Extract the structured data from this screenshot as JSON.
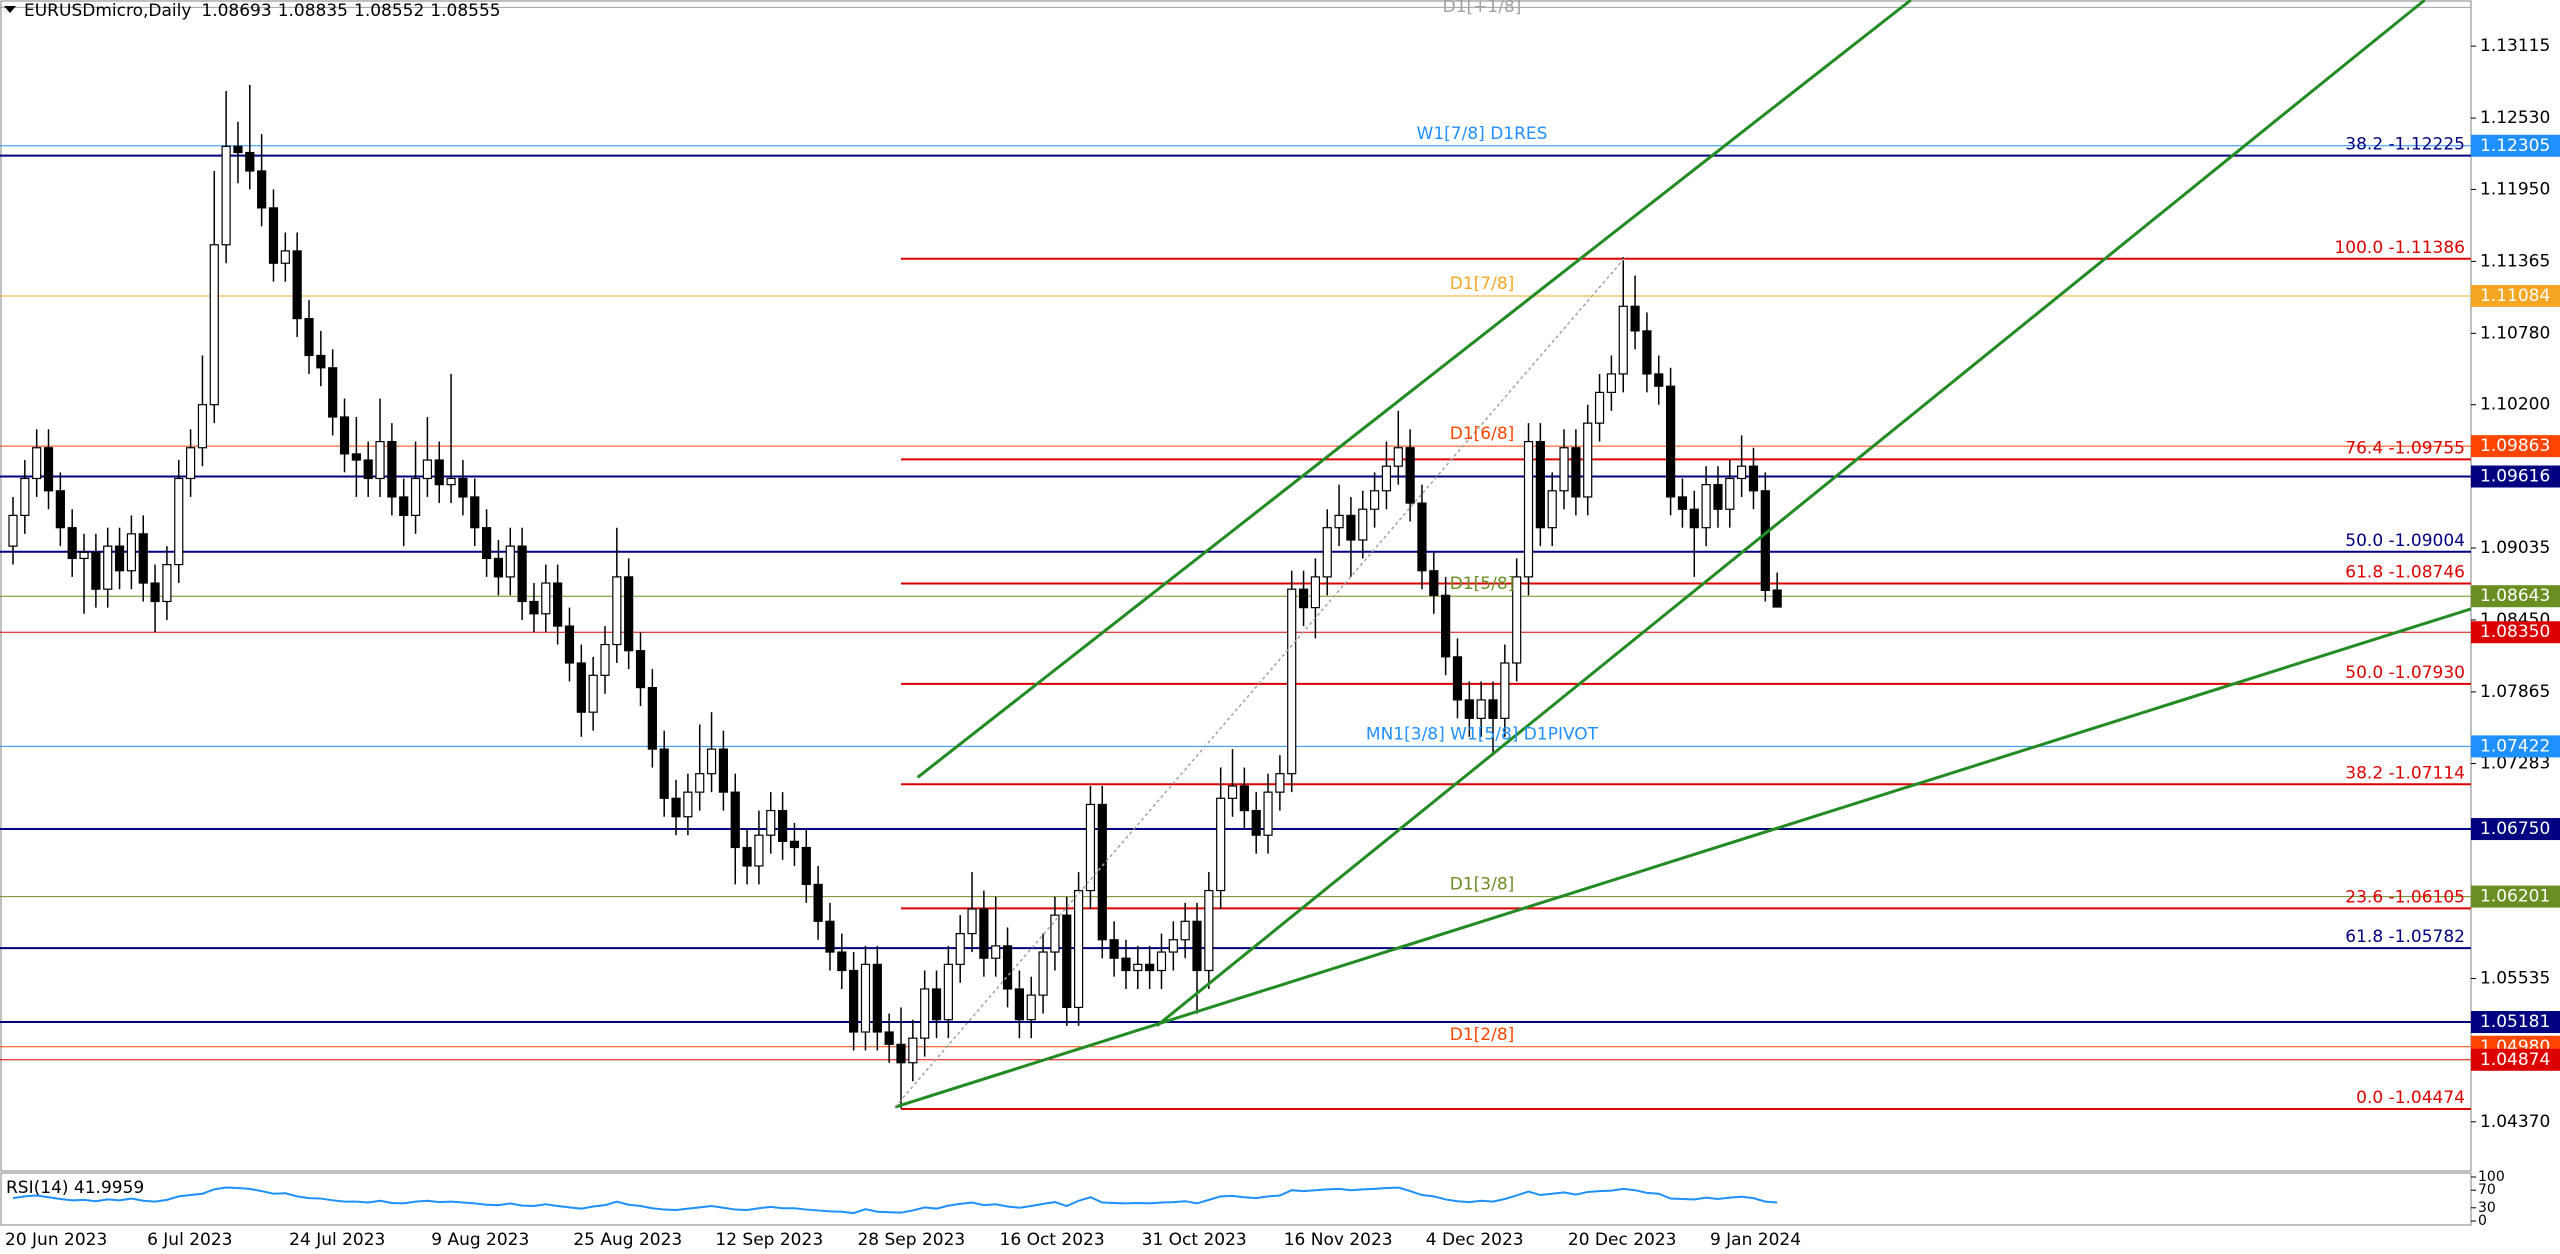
{
  "chart_data": {
    "type": "candlestick",
    "symbol": "EURUSDmicro,Daily",
    "ylim": [
      1.0397,
      1.1349
    ],
    "yticks": [
      1.13115,
      {
        "value": 1.1253,
        "label": "1.12530"
      },
      {
        "value": 1.1195,
        "label": "1.11950"
      },
      1.11365,
      {
        "value": 1.1078,
        "label": "1.10780"
      },
      {
        "value": 1.102,
        "label": "1.10200"
      },
      1.09035,
      {
        "value": 1.0845,
        "label": "1.08450"
      },
      1.07865,
      1.07283,
      1.05535,
      {
        "value": 1.0437,
        "label": "1.04370"
      }
    ],
    "categories": [
      "20 Jun 2023",
      null,
      null,
      null,
      null,
      null,
      null,
      null,
      null,
      null,
      null,
      null,
      "6 Jul 2023",
      null,
      null,
      null,
      null,
      null,
      null,
      null,
      null,
      null,
      null,
      null,
      "24 Jul 2023",
      null,
      null,
      null,
      null,
      null,
      null,
      null,
      null,
      null,
      null,
      null,
      "9 Aug 2023",
      null,
      null,
      null,
      null,
      null,
      null,
      null,
      null,
      null,
      null,
      null,
      "25 Aug 2023",
      null,
      null,
      null,
      null,
      null,
      null,
      null,
      null,
      null,
      null,
      null,
      "12 Sep 2023",
      null,
      null,
      null,
      null,
      null,
      null,
      null,
      null,
      null,
      null,
      null,
      "28 Sep 2023",
      null,
      null,
      null,
      null,
      null,
      null,
      null,
      null,
      null,
      null,
      null,
      "16 Oct 2023",
      null,
      null,
      null,
      null,
      null,
      null,
      null,
      null,
      null,
      null,
      null,
      "31 Oct 2023",
      null,
      null,
      null,
      null,
      null,
      null,
      null,
      null,
      null,
      null,
      null,
      "16 Nov 2023",
      null,
      null,
      null,
      null,
      null,
      null,
      null,
      null,
      null,
      null,
      null,
      "4 Dec 2023",
      null,
      null,
      null,
      null,
      null,
      null,
      null,
      null,
      null,
      null,
      null,
      "20 Dec 2023",
      null,
      null,
      null,
      null,
      null,
      null,
      null,
      null,
      null,
      null,
      null,
      "9 Jan 2024",
      null,
      null,
      null,
      null,
      null
    ],
    "candles": [
      [
        1.0905,
        1.0945,
        1.089,
        1.093
      ],
      [
        1.093,
        1.0975,
        1.0915,
        1.096
      ],
      [
        1.096,
        1.1,
        1.0945,
        1.0985
      ],
      [
        1.0985,
        1.1,
        1.0935,
        1.095
      ],
      [
        1.095,
        1.0965,
        1.0905,
        1.092
      ],
      [
        1.092,
        1.0935,
        1.088,
        1.0895
      ],
      [
        1.0895,
        1.0915,
        1.085,
        1.09
      ],
      [
        1.09,
        1.0915,
        1.0855,
        1.087
      ],
      [
        1.087,
        1.092,
        1.0855,
        1.0905
      ],
      [
        1.0905,
        1.092,
        1.087,
        1.0885
      ],
      [
        1.0885,
        1.093,
        1.087,
        1.0915
      ],
      [
        1.0915,
        1.093,
        1.086,
        1.0875
      ],
      [
        1.0875,
        1.089,
        1.0835,
        1.086
      ],
      [
        1.086,
        1.0905,
        1.0845,
        1.089
      ],
      [
        1.089,
        1.0975,
        1.0875,
        1.096
      ],
      [
        1.096,
        1.1,
        1.0945,
        1.0985
      ],
      [
        1.0985,
        1.106,
        1.097,
        1.102
      ],
      [
        1.102,
        1.121,
        1.1005,
        1.115
      ],
      [
        1.115,
        1.1275,
        1.1135,
        1.123
      ],
      [
        1.123,
        1.125,
        1.12,
        1.1225
      ],
      [
        1.1225,
        1.128,
        1.1195,
        1.121
      ],
      [
        1.121,
        1.124,
        1.1165,
        1.118
      ],
      [
        1.118,
        1.1195,
        1.112,
        1.1135
      ],
      [
        1.1135,
        1.116,
        1.112,
        1.1145
      ],
      [
        1.1145,
        1.116,
        1.1075,
        1.109
      ],
      [
        1.109,
        1.1105,
        1.1045,
        1.106
      ],
      [
        1.106,
        1.108,
        1.1035,
        1.105
      ],
      [
        1.105,
        1.1065,
        1.0995,
        1.101
      ],
      [
        1.101,
        1.1025,
        1.0965,
        1.098
      ],
      [
        1.098,
        1.101,
        1.0945,
        1.0975
      ],
      [
        1.0975,
        1.099,
        1.0945,
        1.096
      ],
      [
        1.096,
        1.1025,
        1.0945,
        1.099
      ],
      [
        1.099,
        1.1005,
        1.093,
        1.0945
      ],
      [
        1.0945,
        1.096,
        1.0905,
        1.093
      ],
      [
        1.093,
        1.099,
        1.0915,
        1.096
      ],
      [
        1.096,
        1.101,
        1.0945,
        1.0975
      ],
      [
        1.0975,
        1.099,
        1.094,
        1.0955
      ],
      [
        1.0955,
        1.1045,
        1.094,
        1.096
      ],
      [
        1.096,
        1.0975,
        1.093,
        1.0945
      ],
      [
        1.0945,
        1.096,
        1.0905,
        1.092
      ],
      [
        1.092,
        1.0935,
        1.088,
        1.0895
      ],
      [
        1.0895,
        1.091,
        1.0865,
        1.088
      ],
      [
        1.088,
        1.092,
        1.0865,
        1.0905
      ],
      [
        1.0905,
        1.092,
        1.0845,
        1.086
      ],
      [
        1.086,
        1.0875,
        1.0835,
        1.085
      ],
      [
        1.085,
        1.089,
        1.0835,
        1.0875
      ],
      [
        1.0875,
        1.089,
        1.0825,
        1.084
      ],
      [
        1.084,
        1.0855,
        1.0795,
        1.081
      ],
      [
        1.081,
        1.0825,
        1.075,
        1.077
      ],
      [
        1.077,
        1.0815,
        1.0755,
        1.08
      ],
      [
        1.08,
        1.084,
        1.0785,
        1.0825
      ],
      [
        1.0825,
        1.092,
        1.081,
        1.088
      ],
      [
        1.088,
        1.0895,
        1.0805,
        1.082
      ],
      [
        1.082,
        1.0835,
        1.0775,
        1.079
      ],
      [
        1.079,
        1.0805,
        1.0725,
        1.074
      ],
      [
        1.074,
        1.0755,
        1.0685,
        1.07
      ],
      [
        1.07,
        1.0715,
        1.067,
        1.0685
      ],
      [
        1.0685,
        1.072,
        1.067,
        1.0705
      ],
      [
        1.0705,
        1.076,
        1.069,
        1.072
      ],
      [
        1.072,
        1.077,
        1.0705,
        1.074
      ],
      [
        1.074,
        1.0755,
        1.069,
        1.0705
      ],
      [
        1.0705,
        1.072,
        1.063,
        1.066
      ],
      [
        1.066,
        1.0675,
        1.063,
        1.0645
      ],
      [
        1.0645,
        1.069,
        1.063,
        1.067
      ],
      [
        1.067,
        1.0705,
        1.0655,
        1.069
      ],
      [
        1.069,
        1.0705,
        1.065,
        1.0665
      ],
      [
        1.0665,
        1.068,
        1.0645,
        1.066
      ],
      [
        1.066,
        1.0675,
        1.0615,
        1.063
      ],
      [
        1.063,
        1.0645,
        1.0585,
        1.06
      ],
      [
        1.06,
        1.0615,
        1.056,
        1.0575
      ],
      [
        1.0575,
        1.059,
        1.0545,
        1.056
      ],
      [
        1.056,
        1.0575,
        1.0495,
        1.051
      ],
      [
        1.051,
        1.058,
        1.0495,
        1.0565
      ],
      [
        1.0565,
        1.058,
        1.0495,
        1.051
      ],
      [
        1.051,
        1.0525,
        1.0485,
        1.05
      ],
      [
        1.05,
        1.053,
        1.0448,
        1.0485
      ],
      [
        1.0485,
        1.052,
        1.047,
        1.0505
      ],
      [
        1.0505,
        1.056,
        1.049,
        1.0545
      ],
      [
        1.0545,
        1.056,
        1.0505,
        1.052
      ],
      [
        1.052,
        1.058,
        1.0505,
        1.0565
      ],
      [
        1.0565,
        1.0605,
        1.055,
        1.059
      ],
      [
        1.059,
        1.064,
        1.0575,
        1.061
      ],
      [
        1.061,
        1.0625,
        1.0555,
        1.057
      ],
      [
        1.057,
        1.062,
        1.0555,
        1.058
      ],
      [
        1.058,
        1.0595,
        1.053,
        1.0545
      ],
      [
        1.0545,
        1.056,
        1.0505,
        1.052
      ],
      [
        1.052,
        1.0555,
        1.0505,
        1.054
      ],
      [
        1.054,
        1.059,
        1.0525,
        1.0575
      ],
      [
        1.0575,
        1.062,
        1.056,
        1.0605
      ],
      [
        1.0605,
        1.062,
        1.0515,
        1.053
      ],
      [
        1.053,
        1.064,
        1.0515,
        1.0625
      ],
      [
        1.0625,
        1.071,
        1.061,
        1.0695
      ],
      [
        1.0695,
        1.071,
        1.057,
        1.0585
      ],
      [
        1.0585,
        1.06,
        1.0555,
        1.057
      ],
      [
        1.057,
        1.0585,
        1.0545,
        1.056
      ],
      [
        1.056,
        1.058,
        1.0545,
        1.0565
      ],
      [
        1.0565,
        1.058,
        1.0545,
        1.056
      ],
      [
        1.056,
        1.059,
        1.0545,
        1.0575
      ],
      [
        1.0575,
        1.06,
        1.056,
        1.0585
      ],
      [
        1.0585,
        1.0615,
        1.057,
        1.06
      ],
      [
        1.06,
        1.0615,
        1.0525,
        1.056
      ],
      [
        1.056,
        1.064,
        1.0545,
        1.0625
      ],
      [
        1.0625,
        1.0725,
        1.061,
        1.07
      ],
      [
        1.07,
        1.074,
        1.0685,
        1.071
      ],
      [
        1.071,
        1.0725,
        1.0675,
        1.069
      ],
      [
        1.069,
        1.0705,
        1.0655,
        1.067
      ],
      [
        1.067,
        1.072,
        1.0655,
        1.0705
      ],
      [
        1.0705,
        1.0735,
        1.069,
        1.072
      ],
      [
        1.072,
        1.0885,
        1.0705,
        1.087
      ],
      [
        1.087,
        1.0885,
        1.084,
        1.0855
      ],
      [
        1.0855,
        1.0895,
        1.083,
        1.088
      ],
      [
        1.088,
        1.0935,
        1.0865,
        1.092
      ],
      [
        1.092,
        1.0955,
        1.0905,
        1.093
      ],
      [
        1.093,
        1.0945,
        1.088,
        1.091
      ],
      [
        1.091,
        1.095,
        1.0895,
        1.0935
      ],
      [
        1.0935,
        1.0965,
        1.092,
        1.095
      ],
      [
        1.095,
        1.099,
        1.0935,
        1.097
      ],
      [
        1.097,
        1.1015,
        1.0955,
        1.0985
      ],
      [
        1.0985,
        1.1,
        1.0925,
        1.094
      ],
      [
        1.094,
        1.0955,
        1.087,
        1.0885
      ],
      [
        1.0885,
        1.09,
        1.085,
        1.0865
      ],
      [
        1.0865,
        1.088,
        1.08,
        1.0815
      ],
      [
        1.0815,
        1.083,
        1.0765,
        1.078
      ],
      [
        1.078,
        1.0795,
        1.075,
        1.0765
      ],
      [
        1.0765,
        1.0795,
        1.075,
        1.078
      ],
      [
        1.078,
        1.0795,
        1.0735,
        1.0765
      ],
      [
        1.0765,
        1.0825,
        1.075,
        1.081
      ],
      [
        1.081,
        1.0895,
        1.0795,
        1.088
      ],
      [
        1.088,
        1.1005,
        1.0865,
        1.099
      ],
      [
        1.099,
        1.1005,
        1.0905,
        1.092
      ],
      [
        1.092,
        1.0965,
        1.0905,
        1.095
      ],
      [
        1.095,
        1.1,
        1.0935,
        1.0985
      ],
      [
        1.0985,
        1.1,
        1.093,
        1.0945
      ],
      [
        1.0945,
        1.102,
        1.093,
        1.1005
      ],
      [
        1.1005,
        1.1045,
        1.099,
        1.103
      ],
      [
        1.103,
        1.106,
        1.1015,
        1.1045
      ],
      [
        1.1045,
        1.114,
        1.103,
        1.11
      ],
      [
        1.11,
        1.1125,
        1.1065,
        1.108
      ],
      [
        1.108,
        1.1095,
        1.103,
        1.1045
      ],
      [
        1.1045,
        1.106,
        1.102,
        1.1035
      ],
      [
        1.1035,
        1.105,
        1.093,
        1.0945
      ],
      [
        1.0945,
        1.096,
        1.092,
        1.0935
      ],
      [
        1.0935,
        1.095,
        1.088,
        1.092
      ],
      [
        1.092,
        1.097,
        1.0905,
        1.0955
      ],
      [
        1.0955,
        1.097,
        1.092,
        1.0935
      ],
      [
        1.0935,
        1.0975,
        1.092,
        1.096
      ],
      [
        1.096,
        1.0995,
        1.0945,
        1.097
      ],
      [
        1.097,
        1.0985,
        1.0935,
        1.095
      ],
      [
        1.095,
        1.0965,
        1.086,
        1.0869
      ],
      [
        1.08693,
        1.08835,
        1.08552,
        1.08555
      ]
    ],
    "levels": [
      {
        "price": 1.1343,
        "color": "#a0a0a0",
        "label": "D1[+1/8]"
      },
      {
        "price": 1.12305,
        "color": "#1e90ff",
        "label": "W1[7/8] D1RES",
        "box": "1.12305"
      },
      {
        "price": 1.11084,
        "color": "#f5a623",
        "label": "D1[7/8]",
        "box": "1.11084"
      },
      {
        "price": 1.09863,
        "color": "#ff4500",
        "label": "D1[6/8]",
        "box": "1.09863"
      },
      {
        "price": 1.09616,
        "color": "#000080",
        "box": "1.09616",
        "line_width": 2
      },
      {
        "price": 1.08643,
        "color": "#6b8e23",
        "label": "D1[5/8]",
        "box": "1.08643"
      },
      {
        "price": 1.0835,
        "color": "#dd0000",
        "box": "1.08350"
      },
      {
        "price": 1.07422,
        "color": "#1e90ff",
        "label": "MN1[3/8] W1[5/8] D1PIVOT",
        "box": "1.07422"
      },
      {
        "price": 1.0675,
        "color": "#000080",
        "box": "1.06750",
        "line_width": 2
      },
      {
        "price": 1.06201,
        "color": "#6b8e23",
        "label": "D1[3/8]",
        "box": "1.06201"
      },
      {
        "price": 1.05181,
        "color": "#000080",
        "box": "1.05181",
        "line_width": 2
      },
      {
        "price": 1.0498,
        "color": "#ff4500",
        "label": "D1[2/8]",
        "box": "1.04980"
      },
      {
        "price": 1.04874,
        "color": "#dd0000",
        "box": "1.04874"
      }
    ],
    "fibonacci": [
      {
        "color": "#dd0000",
        "from_low": true,
        "levels": [
          {
            "price": 1.11386,
            "label": "100.0 -1.11386"
          },
          {
            "price": 1.09755,
            "label": "76.4 -1.09755"
          },
          {
            "price": 1.08746,
            "label": "61.8 -1.08746"
          },
          {
            "price": 1.0793,
            "label": "50.0 -1.07930"
          },
          {
            "price": 1.07114,
            "label": "38.2 -1.07114"
          },
          {
            "price": 1.06105,
            "label": "23.6 -1.06105"
          },
          {
            "price": 1.04474,
            "label": "0.0 -1.04474"
          }
        ]
      },
      {
        "color": "#000080",
        "from_low": false,
        "levels": [
          {
            "price": 1.12225,
            "label": "38.2 -1.12225"
          },
          {
            "price": 1.09004,
            "label": "50.0 -1.09004"
          },
          {
            "price": 1.05782,
            "label": "61.8 -1.05782"
          }
        ]
      }
    ],
    "trendlines": [
      {
        "color": "#228b22",
        "x": [
          76.4,
          160.3
        ],
        "y": [
          1.0717,
          1.1349
        ]
      },
      {
        "color": "#228b22",
        "x": [
          96.6,
          203.7
        ],
        "y": [
          1.0515,
          1.1349
        ]
      },
      {
        "color": "#228b22",
        "x": [
          74.5,
          207.6
        ],
        "y": [
          1.0449,
          1.0854
        ]
      },
      {
        "color": "#a0a0a0",
        "dotted": true,
        "x": [
          74.5,
          136.1
        ],
        "y": [
          1.0449,
          1.1139
        ]
      }
    ],
    "rsi": {
      "title": "RSI(14) 41.9959",
      "color": "#1e90ff",
      "ylim": [
        0,
        100
      ],
      "yticks": [
        0,
        30,
        70,
        100
      ],
      "values": [
        52,
        56,
        58,
        54,
        50,
        47,
        48,
        45,
        49,
        47,
        51,
        46,
        44,
        48,
        56,
        59,
        62,
        72,
        76,
        75,
        73,
        68,
        62,
        63,
        56,
        52,
        51,
        47,
        44,
        44,
        42,
        46,
        41,
        40,
        44,
        46,
        43,
        44,
        42,
        40,
        37,
        36,
        40,
        35,
        34,
        38,
        34,
        31,
        28,
        33,
        36,
        44,
        37,
        34,
        29,
        26,
        25,
        28,
        31,
        34,
        30,
        26,
        25,
        29,
        32,
        29,
        29,
        26,
        24,
        22,
        21,
        18,
        27,
        21,
        20,
        19,
        24,
        31,
        28,
        35,
        39,
        42,
        36,
        38,
        33,
        30,
        34,
        39,
        43,
        34,
        46,
        54,
        42,
        41,
        40,
        41,
        40,
        42,
        43,
        45,
        40,
        48,
        56,
        57,
        54,
        52,
        56,
        58,
        70,
        68,
        70,
        72,
        73,
        70,
        72,
        73,
        75,
        76,
        68,
        59,
        56,
        49,
        45,
        43,
        46,
        44,
        50,
        58,
        67,
        59,
        62,
        65,
        60,
        66,
        68,
        69,
        73,
        70,
        64,
        62,
        51,
        50,
        49,
        53,
        50,
        53,
        55,
        52,
        44,
        41.9959
      ]
    }
  }
}
